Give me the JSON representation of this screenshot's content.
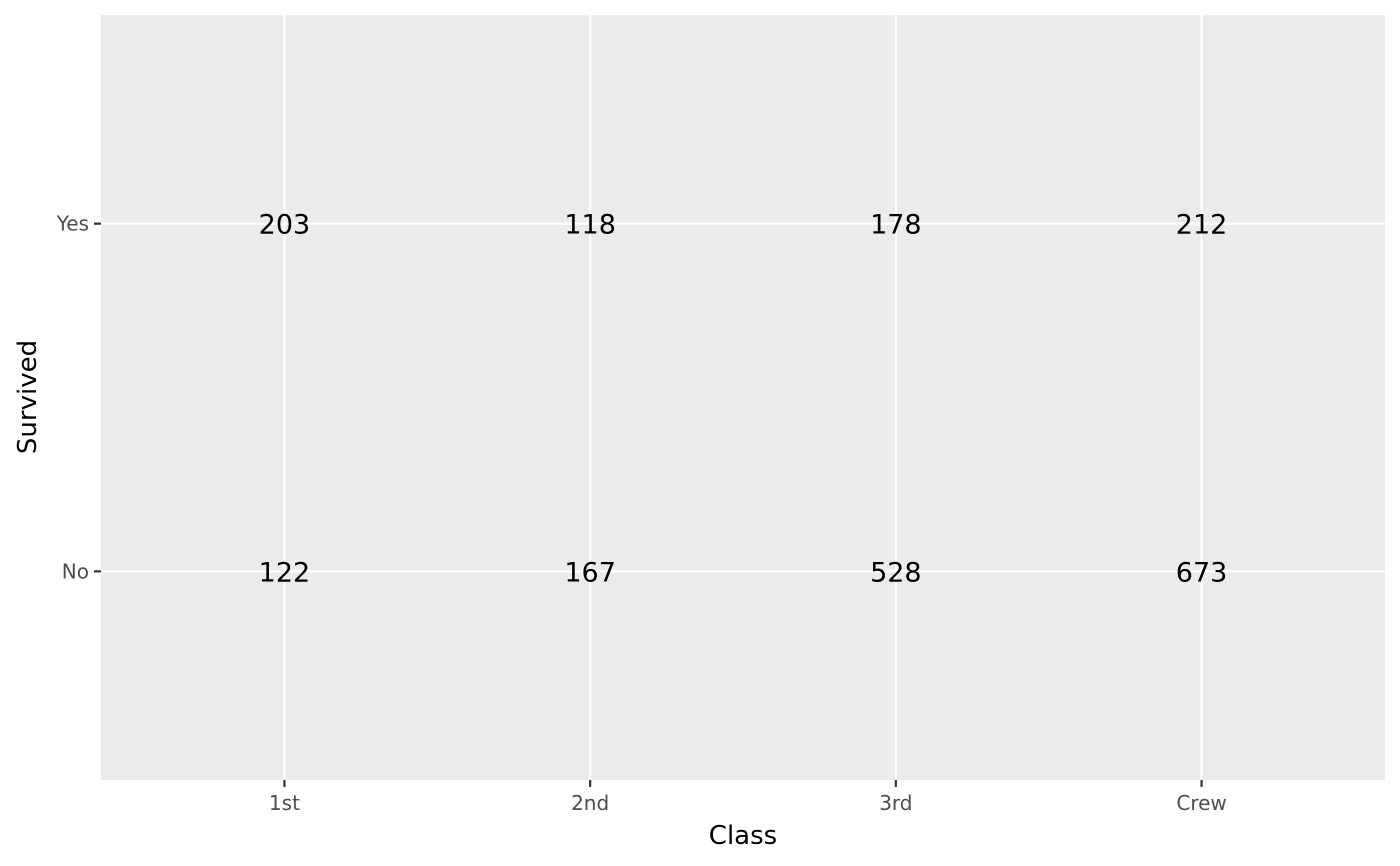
{
  "chart_data": {
    "type": "table",
    "title": "",
    "xlabel": "Class",
    "ylabel": "Survived",
    "x_categories": [
      "1st",
      "2nd",
      "3rd",
      "Crew"
    ],
    "y_categories": [
      "No",
      "Yes"
    ],
    "cells": [
      {
        "x": "1st",
        "y": "Yes",
        "value": 203,
        "label": "203"
      },
      {
        "x": "2nd",
        "y": "Yes",
        "value": 118,
        "label": "118"
      },
      {
        "x": "3rd",
        "y": "Yes",
        "value": 178,
        "label": "178"
      },
      {
        "x": "Crew",
        "y": "Yes",
        "value": 212,
        "label": "212"
      },
      {
        "x": "1st",
        "y": "No",
        "value": 122,
        "label": "122"
      },
      {
        "x": "2nd",
        "y": "No",
        "value": 167,
        "label": "167"
      },
      {
        "x": "3rd",
        "y": "No",
        "value": 528,
        "label": "528"
      },
      {
        "x": "Crew",
        "y": "No",
        "value": 673,
        "label": "673"
      }
    ],
    "grid": true,
    "legend": "none",
    "colors": {
      "panel_background": "#EBEBEB",
      "grid_lines": "#FFFFFF",
      "text": "#000000",
      "tick_text": "#4D4D4D"
    }
  }
}
